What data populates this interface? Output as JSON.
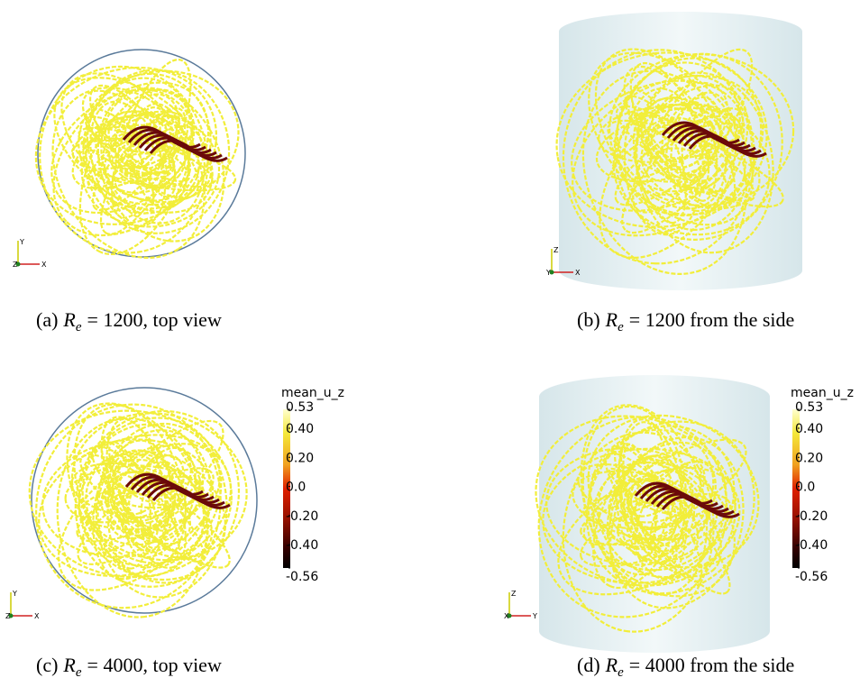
{
  "panels": [
    {
      "caption": {
        "label": "(a)",
        "symbol": "R",
        "subscript": "e",
        "text": "= 1200, top view"
      },
      "axes": [
        "Y",
        "Z",
        "X"
      ]
    },
    {
      "caption": {
        "label": "(b)",
        "symbol": "R",
        "subscript": "e",
        "text": "= 1200 from the side"
      },
      "axes": [
        "Z",
        "Y",
        "X"
      ]
    },
    {
      "caption": {
        "label": "(c)",
        "symbol": "R",
        "subscript": "e",
        "text": "= 4000, top view"
      },
      "axes": [
        "Y",
        "Z",
        "X"
      ]
    },
    {
      "caption": {
        "label": "(d)",
        "symbol": "R",
        "subscript": "e",
        "text": "= 4000 from the side"
      },
      "axes": [
        "Z",
        "X",
        "Y"
      ]
    }
  ],
  "colorbars": [
    {
      "title": "mean_u_z",
      "range": [
        -0.56,
        0.53
      ],
      "ticks": [
        {
          "value": 0.53,
          "label": "0.53"
        },
        {
          "value": 0.4,
          "label": "0.40"
        },
        {
          "value": 0.2,
          "label": "0.20"
        },
        {
          "value": 0,
          "label": "0.0"
        },
        {
          "value": -0.2,
          "label": "-0.20"
        },
        {
          "value": -0.4,
          "label": "-0.40"
        },
        {
          "value": -0.56,
          "label": "-0.56"
        }
      ]
    },
    {
      "title": "mean_u_z",
      "range": [
        -0.56,
        0.53
      ],
      "ticks": [
        {
          "value": 0.53,
          "label": "0.53"
        },
        {
          "value": 0.4,
          "label": "0.40"
        },
        {
          "value": 0.2,
          "label": "0.20"
        },
        {
          "value": 0,
          "label": "0.0"
        },
        {
          "value": -0.2,
          "label": "-0.20"
        },
        {
          "value": -0.4,
          "label": "-0.40"
        },
        {
          "value": -0.56,
          "label": "-0.56"
        }
      ]
    }
  ]
}
